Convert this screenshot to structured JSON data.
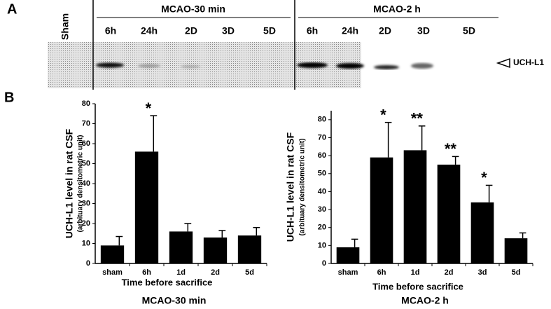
{
  "panel_labels": [
    "A",
    "B"
  ],
  "blot": {
    "sham": "Sham",
    "marker": "UCH-L1",
    "groups": [
      {
        "title": "MCAO-30 min",
        "lanes": [
          "6h",
          "24h",
          "2D",
          "3D",
          "5D"
        ]
      },
      {
        "title": "MCAO-2 h",
        "lanes": [
          "6h",
          "24h",
          "2D",
          "3D",
          "5D"
        ]
      }
    ]
  },
  "chart_data": [
    {
      "type": "bar",
      "title": "MCAO-30 min",
      "x_label": "Time before sacrifice",
      "y_label": "UCH-L1 level in rat CSF",
      "y_sublabel": "(arbituary densitometric unit)",
      "categories": [
        "sham",
        "6h",
        "1d",
        "2d",
        "5d"
      ],
      "values": [
        9,
        56,
        16,
        13,
        14
      ],
      "errors": [
        4.5,
        18,
        4,
        3.5,
        4
      ],
      "significance": [
        null,
        "*",
        null,
        null,
        null
      ],
      "color": "#000000",
      "ylim": [
        0,
        80
      ],
      "yticks": [
        0,
        10,
        20,
        30,
        40,
        50,
        60,
        70,
        80
      ]
    },
    {
      "type": "bar",
      "title": "MCAO-2 h",
      "x_label": "Time before sacrifice",
      "y_label": "UCH-L1 level in rat CSF",
      "y_sublabel": "(arbituary densitometric unit)",
      "categories": [
        "sham",
        "6h",
        "1d",
        "2d",
        "3d",
        "5d"
      ],
      "values": [
        9,
        59,
        63,
        55,
        34,
        14
      ],
      "errors": [
        4.5,
        19.5,
        13.5,
        4.5,
        9.5,
        3
      ],
      "significance": [
        null,
        "*",
        "**",
        "**",
        "*",
        null
      ],
      "color": "#000000",
      "ylim": [
        0,
        85
      ],
      "yticks": [
        0,
        10,
        20,
        30,
        40,
        50,
        60,
        70,
        80
      ]
    }
  ]
}
